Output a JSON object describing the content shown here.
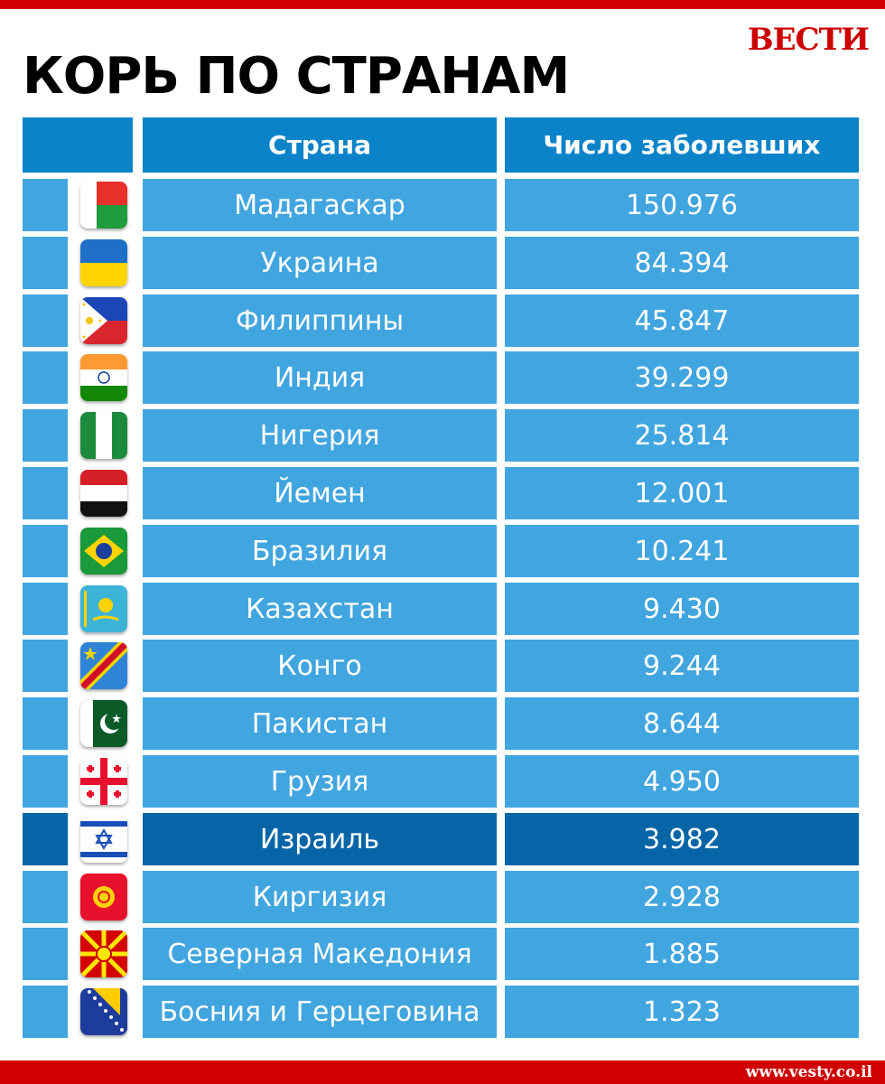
{
  "logo": "ВЕСТИ",
  "site_url": "www.vesty.co.il",
  "colors": {
    "accent_red": "#d00000",
    "cell_blue": "#41a5df",
    "header_blue": "#0a83c9",
    "highlight_blue": "#0665a6"
  },
  "chart_data": {
    "type": "table",
    "title": "КОРЬ ПО СТРАНАМ",
    "columns": [
      "Страна",
      "Число заболевших"
    ],
    "highlighted_row": "Израиль",
    "rows": [
      {
        "flag": "madagascar-flag-icon",
        "country": "Мадагаскар",
        "value_text": "150.976",
        "value": 150976
      },
      {
        "flag": "ukraine-flag-icon",
        "country": "Украина",
        "value_text": "84.394",
        "value": 84394
      },
      {
        "flag": "philippines-flag-icon",
        "country": "Филиппины",
        "value_text": "45.847",
        "value": 45847
      },
      {
        "flag": "india-flag-icon",
        "country": "Индия",
        "value_text": "39.299",
        "value": 39299
      },
      {
        "flag": "nigeria-flag-icon",
        "country": "Нигерия",
        "value_text": "25.814",
        "value": 25814
      },
      {
        "flag": "yemen-flag-icon",
        "country": "Йемен",
        "value_text": "12.001",
        "value": 12001
      },
      {
        "flag": "brazil-flag-icon",
        "country": "Бразилия",
        "value_text": "10.241",
        "value": 10241
      },
      {
        "flag": "kazakhstan-flag-icon",
        "country": "Казахстан",
        "value_text": "9.430",
        "value": 9430
      },
      {
        "flag": "congo-flag-icon",
        "country": "Конго",
        "value_text": "9.244",
        "value": 9244
      },
      {
        "flag": "pakistan-flag-icon",
        "country": "Пакистан",
        "value_text": "8.644",
        "value": 8644
      },
      {
        "flag": "georgia-flag-icon",
        "country": "Грузия",
        "value_text": "4.950",
        "value": 4950
      },
      {
        "flag": "israel-flag-icon",
        "country": "Израиль",
        "value_text": "3.982",
        "value": 3982
      },
      {
        "flag": "kyrgyzstan-flag-icon",
        "country": "Киргизия",
        "value_text": "2.928",
        "value": 2928
      },
      {
        "flag": "north-macedonia-flag-icon",
        "country": "Северная Македония",
        "value_text": "1.885",
        "value": 1885
      },
      {
        "flag": "bosnia-flag-icon",
        "country": "Босния и Герцеговина",
        "value_text": "1.323",
        "value": 1323
      }
    ]
  }
}
